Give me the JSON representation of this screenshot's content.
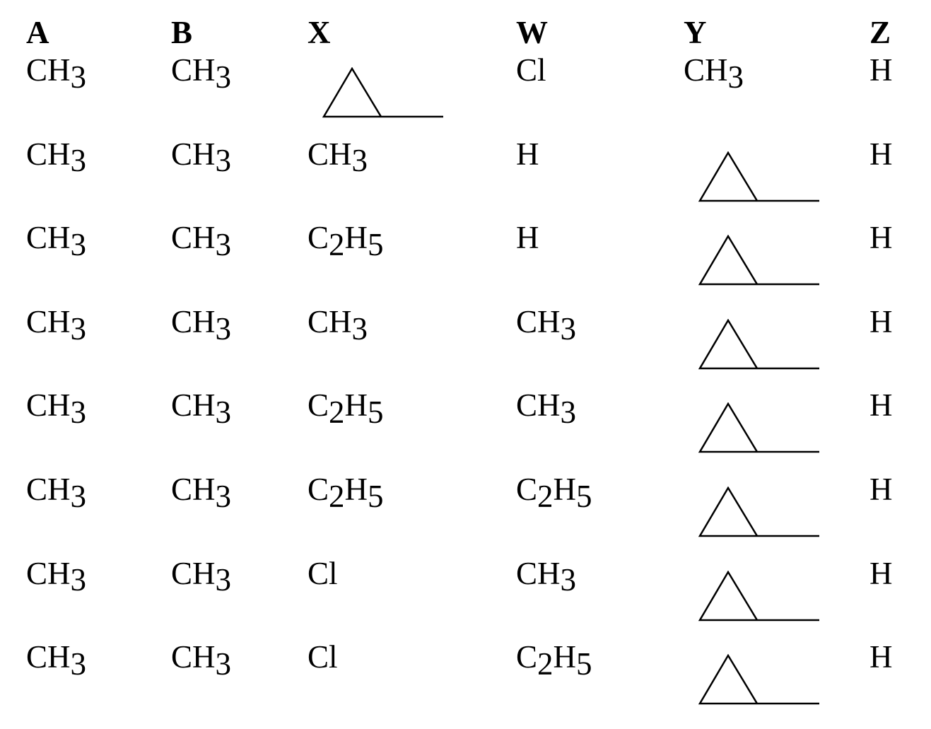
{
  "table": {
    "headers": [
      "A",
      "B",
      "X",
      "W",
      "Y",
      "Z"
    ],
    "rows": [
      [
        "CH3",
        "CH3",
        "cyclopropyl",
        "Cl",
        "CH3",
        "H"
      ],
      [
        "CH3",
        "CH3",
        "CH3",
        "H",
        "cyclopropyl",
        "H"
      ],
      [
        "CH3",
        "CH3",
        "C2H5",
        "H",
        "cyclopropyl",
        "H"
      ],
      [
        "CH3",
        "CH3",
        "CH3",
        "CH3",
        "cyclopropyl",
        "H"
      ],
      [
        "CH3",
        "CH3",
        "C2H5",
        "CH3",
        "cyclopropyl",
        "H"
      ],
      [
        "CH3",
        "CH3",
        "C2H5",
        "C2H5",
        "cyclopropyl",
        "H"
      ],
      [
        "CH3",
        "CH3",
        "Cl",
        "CH3",
        "cyclopropyl",
        "H"
      ],
      [
        "CH3",
        "CH3",
        "Cl",
        "C2H5",
        "cyclopropyl",
        "H"
      ]
    ]
  }
}
